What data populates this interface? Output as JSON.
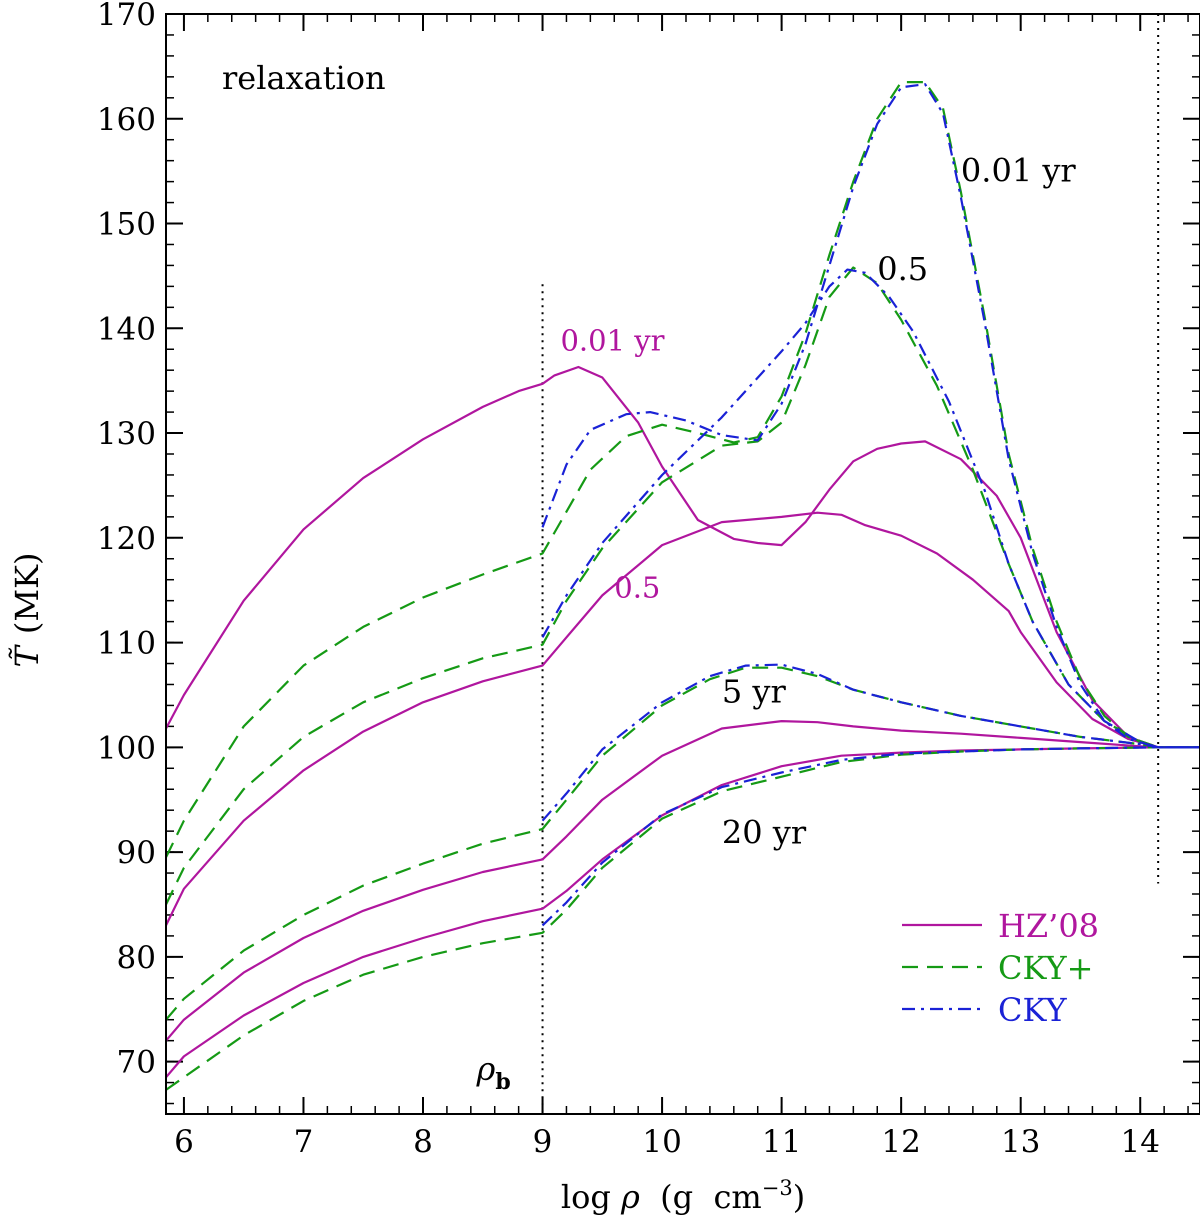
{
  "chart_data": {
    "type": "line",
    "title": "",
    "annotation_top_left": "relaxation",
    "xlabel": "log ρ (g cm⁻³)",
    "xlabel_parts": {
      "prefix": "log ",
      "symbol": "ρ",
      "units": "  (g  cm",
      "exponent": "−3",
      "close": ")"
    },
    "ylabel": "T̃ (MK)",
    "ylabel_parts": {
      "symbol": "T̃",
      "units": "(MK)"
    },
    "xlim": [
      5.85,
      14.5
    ],
    "ylim": [
      65,
      170
    ],
    "x_ticks": [
      6,
      7,
      8,
      9,
      10,
      11,
      12,
      13,
      14
    ],
    "x_tick_labels": [
      "6",
      "7",
      "8",
      "9",
      "10",
      "11",
      "12",
      "13",
      "14"
    ],
    "y_ticks": [
      70,
      80,
      90,
      100,
      110,
      120,
      130,
      140,
      150,
      160,
      170
    ],
    "y_tick_labels": [
      "70",
      "80",
      "90",
      "100",
      "110",
      "120",
      "130",
      "140",
      "150",
      "160",
      "170"
    ],
    "x_minor_step": 0.2,
    "y_minor_step": 2,
    "vertical_markers": [
      {
        "x": 9.0,
        "y_from": 65,
        "y_to": 144.2,
        "label": "ρ",
        "label_sub": "b"
      },
      {
        "x": 14.15,
        "y_from": 87,
        "y_to": 170,
        "label": ""
      }
    ],
    "legend": {
      "position": "bottom-right",
      "entries": [
        {
          "label": "HZ’08",
          "style": "solid",
          "color": "#b0169e"
        },
        {
          "label": "CKY+",
          "style": "dashed",
          "color": "#159a15"
        },
        {
          "label": "CKY",
          "style": "dashdot",
          "color": "#1a22d6"
        }
      ]
    },
    "curve_labels": [
      {
        "text": "0.01 yr",
        "x": 12.5,
        "y": 154,
        "color": "#000000"
      },
      {
        "text": "0.5",
        "x": 11.8,
        "y": 144.6,
        "color": "#000000"
      },
      {
        "text": "0.01 yr",
        "x": 9.15,
        "y": 137.9,
        "color": "#b0169e"
      },
      {
        "text": "0.5",
        "x": 9.6,
        "y": 114.3,
        "color": "#b0169e"
      },
      {
        "text": "5 yr",
        "x": 10.5,
        "y": 104.3,
        "color": "#000000"
      },
      {
        "text": "20 yr",
        "x": 10.5,
        "y": 90.8,
        "color": "#000000"
      }
    ],
    "series": [
      {
        "name": "HZ'08 0.01 yr",
        "model": "HZ’08",
        "time": "0.01 yr",
        "style": "solid",
        "color": "#b0169e",
        "x": [
          5.85,
          6,
          6.5,
          7,
          7.5,
          8,
          8.5,
          8.8,
          9,
          9.1,
          9.3,
          9.5,
          9.8,
          10,
          10.3,
          10.6,
          10.8,
          11,
          11.2,
          11.4,
          11.6,
          11.8,
          12,
          12.2,
          12.5,
          12.8,
          13,
          13.3,
          13.6,
          13.9,
          14.15,
          14.5
        ],
        "y": [
          101.8,
          105,
          114,
          120.8,
          125.7,
          129.4,
          132.5,
          134,
          134.7,
          135.5,
          136.3,
          135.3,
          131,
          126.8,
          121.7,
          119.9,
          119.5,
          119.3,
          121.5,
          124.6,
          127.3,
          128.5,
          129,
          129.2,
          127.5,
          124,
          120,
          111,
          104.5,
          101,
          100,
          100
        ]
      },
      {
        "name": "HZ'08 0.5",
        "model": "HZ’08",
        "time": "0.5",
        "style": "solid",
        "color": "#b0169e",
        "x": [
          5.85,
          6,
          6.5,
          7,
          7.5,
          8,
          8.5,
          9,
          9.2,
          9.5,
          10,
          10.5,
          11,
          11.3,
          11.5,
          11.7,
          12,
          12.3,
          12.6,
          12.9,
          13,
          13.3,
          13.6,
          13.9,
          14.15,
          14.5
        ],
        "y": [
          83,
          86.5,
          93,
          97.8,
          101.5,
          104.3,
          106.3,
          107.8,
          110.5,
          114.5,
          119.3,
          121.5,
          122,
          122.4,
          122.2,
          121.2,
          120.2,
          118.5,
          116,
          113,
          111,
          106.2,
          102.7,
          100.8,
          100,
          100
        ]
      },
      {
        "name": "HZ'08 5 yr",
        "model": "HZ’08",
        "time": "5 yr",
        "style": "solid",
        "color": "#b0169e",
        "x": [
          5.85,
          6,
          6.5,
          7,
          7.5,
          8,
          8.5,
          9,
          9.2,
          9.5,
          10,
          10.5,
          11,
          11.3,
          11.6,
          12,
          12.5,
          13,
          13.5,
          14,
          14.15,
          14.5
        ],
        "y": [
          72,
          74,
          78.5,
          81.8,
          84.4,
          86.4,
          88.1,
          89.3,
          91.5,
          95,
          99.2,
          101.8,
          102.5,
          102.4,
          102,
          101.6,
          101.3,
          100.9,
          100.5,
          100.1,
          100,
          100
        ]
      },
      {
        "name": "HZ'08 20 yr",
        "model": "HZ’08",
        "time": "20 yr",
        "style": "solid",
        "color": "#b0169e",
        "x": [
          5.85,
          6,
          6.5,
          7,
          7.5,
          8,
          8.5,
          9,
          9.2,
          9.5,
          10,
          10.5,
          11,
          11.5,
          12,
          12.5,
          13,
          13.5,
          14.15,
          14.5
        ],
        "y": [
          68.5,
          70.5,
          74.4,
          77.5,
          80,
          81.8,
          83.4,
          84.6,
          86.3,
          89.3,
          93.5,
          96.4,
          98.2,
          99.2,
          99.5,
          99.7,
          99.8,
          99.9,
          100,
          100
        ]
      },
      {
        "name": "CKY+ 0.01 yr",
        "model": "CKY+",
        "time": "0.01 yr",
        "style": "dashed",
        "color": "#159a15",
        "x": [
          5.85,
          6,
          6.5,
          7,
          7.5,
          8,
          8.5,
          9,
          9.2,
          9.4,
          9.7,
          10,
          10.3,
          10.6,
          10.8,
          11,
          11.2,
          11.4,
          11.6,
          11.8,
          12,
          12.2,
          12.35,
          12.5,
          12.7,
          12.9,
          13.1,
          13.3,
          13.5,
          13.7,
          13.9,
          14.15,
          14.5
        ],
        "y": [
          89.5,
          93,
          102,
          107.8,
          111.5,
          114.3,
          116.5,
          118.5,
          122.5,
          126.5,
          129.7,
          130.8,
          130,
          129.1,
          129.6,
          133.5,
          139.5,
          147,
          154,
          160,
          163.5,
          163.5,
          161,
          153,
          141,
          128,
          119,
          112,
          106.5,
          103,
          101,
          100,
          100
        ]
      },
      {
        "name": "CKY+ 0.5",
        "model": "CKY+",
        "time": "0.5",
        "style": "dashed",
        "color": "#159a15",
        "x": [
          5.85,
          6,
          6.5,
          7,
          7.5,
          8,
          8.5,
          9,
          9.2,
          9.5,
          10,
          10.5,
          10.8,
          11,
          11.2,
          11.4,
          11.6,
          11.8,
          12,
          12.3,
          12.6,
          12.9,
          13.1,
          13.4,
          13.7,
          14,
          14.15,
          14.5
        ],
        "y": [
          85,
          88.5,
          96,
          101,
          104.3,
          106.6,
          108.5,
          109.8,
          114,
          119,
          125.3,
          128.8,
          129.2,
          131,
          136.5,
          143,
          145.8,
          144.3,
          140.8,
          134.5,
          126.5,
          117.5,
          112,
          106,
          102.5,
          100.5,
          100,
          100
        ]
      },
      {
        "name": "CKY+ 5 yr",
        "model": "CKY+",
        "time": "5 yr",
        "style": "dashed",
        "color": "#159a15",
        "x": [
          5.85,
          6,
          6.5,
          7,
          7.5,
          8,
          8.5,
          9,
          9.2,
          9.5,
          10,
          10.4,
          10.7,
          11,
          11.3,
          11.6,
          12,
          12.5,
          13,
          13.5,
          14,
          14.15,
          14.5
        ],
        "y": [
          74,
          76,
          80.6,
          84,
          86.8,
          88.9,
          90.8,
          92.2,
          95,
          99.2,
          104,
          106.5,
          107.6,
          107.6,
          106.8,
          105.5,
          104.3,
          103,
          102,
          101,
          100.3,
          100,
          100
        ]
      },
      {
        "name": "CKY+ 20 yr",
        "model": "CKY+",
        "time": "20 yr",
        "style": "dashed",
        "color": "#159a15",
        "x": [
          5.85,
          6,
          6.5,
          7,
          7.5,
          8,
          8.5,
          9,
          9.2,
          9.5,
          10,
          10.5,
          11,
          11.5,
          12,
          12.5,
          13,
          13.5,
          14.15,
          14.5
        ],
        "y": [
          67.3,
          68.5,
          72.5,
          75.8,
          78.3,
          80,
          81.3,
          82.3,
          84.5,
          88.5,
          93.2,
          95.8,
          97.2,
          98.6,
          99.3,
          99.6,
          99.8,
          99.9,
          100,
          100
        ]
      },
      {
        "name": "CKY 0.01 yr",
        "model": "CKY",
        "time": "0.01 yr",
        "style": "dashdot",
        "color": "#1a22d6",
        "x": [
          9,
          9.2,
          9.4,
          9.7,
          9.9,
          10.2,
          10.5,
          10.8,
          11,
          11.2,
          11.4,
          11.6,
          11.8,
          12,
          12.2,
          12.35,
          12.5,
          12.7,
          12.9,
          13.1,
          13.3,
          13.5,
          13.7,
          13.9,
          14.15,
          14.5
        ],
        "y": [
          121,
          127,
          130.3,
          131.8,
          132,
          131.2,
          129.8,
          129.3,
          132.8,
          138.5,
          146,
          153.5,
          159.5,
          163,
          163.3,
          160.5,
          152.5,
          140.5,
          127.5,
          118.5,
          111.5,
          106,
          102.5,
          100.8,
          100,
          100
        ]
      },
      {
        "name": "CKY 0.5",
        "model": "CKY",
        "time": "0.5",
        "style": "dashdot",
        "color": "#1a22d6",
        "x": [
          9,
          9.2,
          9.5,
          10,
          10.5,
          11,
          11.2,
          11.4,
          11.55,
          11.7,
          11.9,
          12.1,
          12.4,
          12.7,
          12.9,
          13.1,
          13.4,
          13.7,
          14,
          14.15,
          14.5
        ],
        "y": [
          110.5,
          114.5,
          119.5,
          126,
          131.5,
          137.8,
          140.5,
          144,
          145.6,
          145.3,
          143,
          139.7,
          133,
          124.5,
          117.5,
          112,
          106,
          102.5,
          100.5,
          100,
          100
        ]
      },
      {
        "name": "CKY 5 yr",
        "model": "CKY",
        "time": "5 yr",
        "style": "dashdot",
        "color": "#1a22d6",
        "x": [
          9,
          9.2,
          9.5,
          10,
          10.4,
          10.7,
          11,
          11.3,
          11.6,
          12,
          12.5,
          13,
          13.5,
          14,
          14.15,
          14.5
        ],
        "y": [
          93,
          95.6,
          99.8,
          104.3,
          106.8,
          107.8,
          107.9,
          107,
          105.5,
          104.3,
          103,
          102,
          101,
          100.3,
          100,
          100
        ]
      },
      {
        "name": "CKY 20 yr",
        "model": "CKY",
        "time": "20 yr",
        "style": "dashdot",
        "color": "#1a22d6",
        "x": [
          9,
          9.2,
          9.5,
          10,
          10.5,
          11,
          11.5,
          12,
          12.5,
          13,
          13.5,
          14.15,
          14.5
        ],
        "y": [
          83,
          85.2,
          89,
          93.6,
          96.2,
          97.6,
          98.8,
          99.4,
          99.6,
          99.8,
          99.9,
          100,
          100
        ]
      }
    ]
  }
}
